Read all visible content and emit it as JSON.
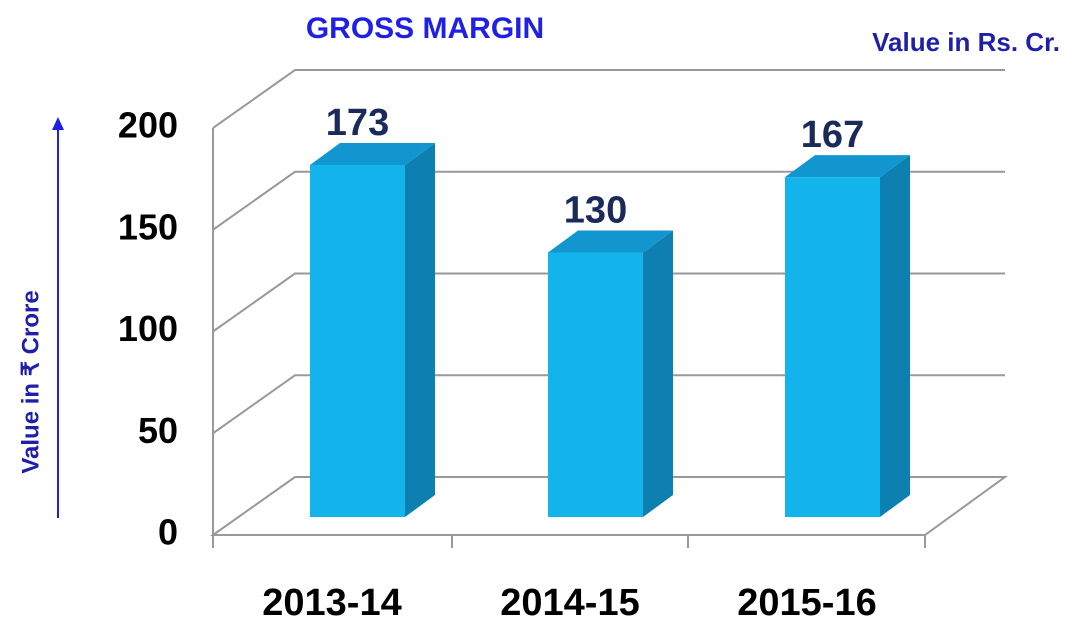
{
  "chart_data": {
    "type": "bar3d",
    "title": "GROSS MARGIN",
    "subtitle": "Value in Rs. Cr.",
    "y_label": "Value in ₹ Crore",
    "categories": [
      "2013-14",
      "2014-15",
      "2015-16"
    ],
    "values": [
      173,
      130,
      167
    ],
    "color": "#13b4ec",
    "ylim": [
      0,
      200
    ],
    "yticks": [
      0,
      50,
      100,
      150,
      200
    ],
    "grid": true
  }
}
